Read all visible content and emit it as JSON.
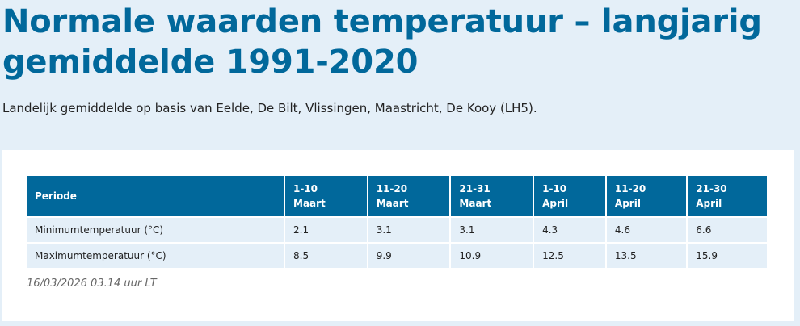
{
  "page": {
    "title": "Normale waarden temperatuur – langjarig gemiddelde 1991-2020",
    "subtitle": "Landelijk gemiddelde op basis van Eelde, De Bilt, Vlissingen, Maastricht, De Kooy (LH5)."
  },
  "table": {
    "header": {
      "periode": "Periode",
      "columns": [
        {
          "range": "1-10",
          "month": "Maart"
        },
        {
          "range": "11-20",
          "month": "Maart"
        },
        {
          "range": "21-31",
          "month": "Maart"
        },
        {
          "range": "1-10",
          "month": "April"
        },
        {
          "range": "11-20",
          "month": "April"
        },
        {
          "range": "21-30",
          "month": "April"
        }
      ]
    },
    "rows": [
      {
        "label": "Minimumtemperatuur (°C)",
        "values": [
          "2.1",
          "3.1",
          "3.1",
          "4.3",
          "4.6",
          "6.6"
        ]
      },
      {
        "label": "Maximumtemperatuur (°C)",
        "values": [
          "8.5",
          "9.9",
          "10.9",
          "12.5",
          "13.5",
          "15.9"
        ]
      }
    ]
  },
  "footer": {
    "timestamp": "16/03/2026 03.14 uur LT"
  }
}
